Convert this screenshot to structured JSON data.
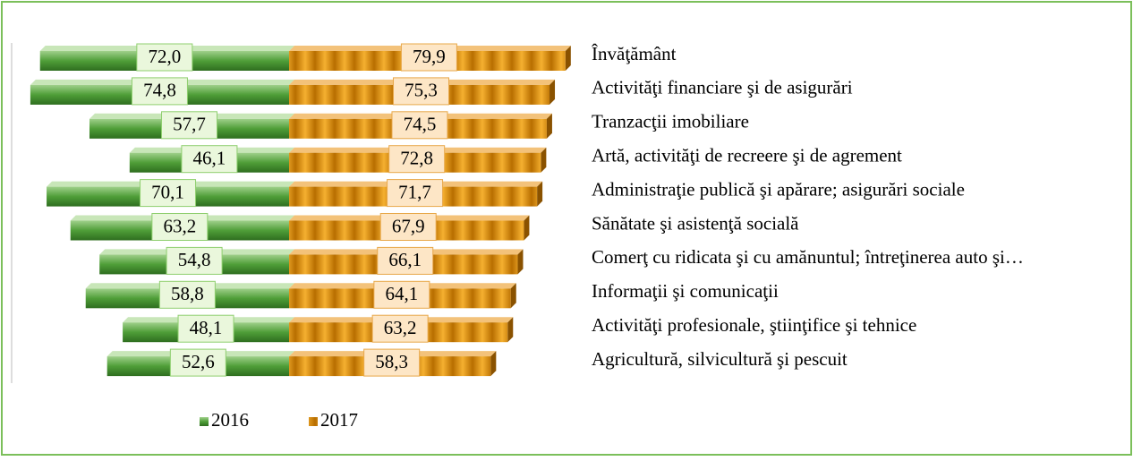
{
  "chart_data": {
    "type": "butterfly-bar",
    "categories": [
      "Învăţământ",
      "Activităţi financiare şi de asigurări",
      "Tranzacţii imobiliare",
      "Artă, activităţi de recreere şi de agrement",
      "Administraţie publică şi apărare; asigurări sociale",
      "Sănătate şi asistenţă socială",
      "Comerţ cu ridicata şi cu amănuntul; întreţinerea auto şi…",
      "Informaţii şi comunicaţii",
      "Activităţi profesionale, ştiinţifice şi tehnice",
      "Agricultură, silvicultură şi pescuit"
    ],
    "series": [
      {
        "name": "2016",
        "color": "#3f8f2c",
        "values": [
          72.0,
          74.8,
          57.7,
          46.1,
          70.1,
          63.2,
          54.8,
          58.8,
          48.1,
          52.6
        ],
        "value_labels": [
          "72,0",
          "74,8",
          "57,7",
          "46,1",
          "70,1",
          "63,2",
          "54,8",
          "58,8",
          "48,1",
          "52,6"
        ]
      },
      {
        "name": "2017",
        "color": "#d98b00",
        "values": [
          79.9,
          75.3,
          74.5,
          72.8,
          71.7,
          67.9,
          66.1,
          64.1,
          63.2,
          58.3
        ],
        "value_labels": [
          "79,9",
          "75,3",
          "74,5",
          "72,8",
          "71,7",
          "67,9",
          "66,1",
          "64,1",
          "63,2",
          "58,3"
        ]
      }
    ]
  }
}
